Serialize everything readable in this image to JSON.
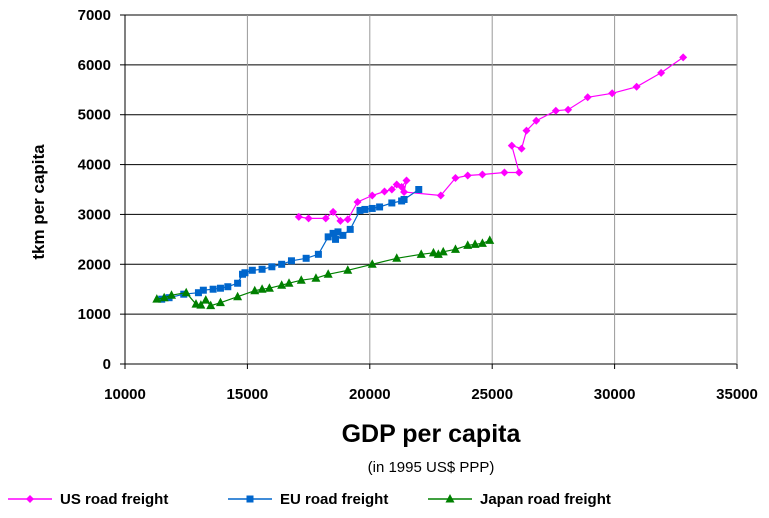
{
  "chart_data": {
    "type": "line",
    "title": "",
    "xlabel": "GDP per capita",
    "xlabel_sub": "(in 1995 US$ PPP)",
    "ylabel": "tkm per capita",
    "xlim": [
      10000,
      35000
    ],
    "ylim": [
      0,
      7000
    ],
    "x_ticks": [
      10000,
      15000,
      20000,
      25000,
      30000,
      35000
    ],
    "y_ticks": [
      0,
      1000,
      2000,
      3000,
      4000,
      5000,
      6000,
      7000
    ],
    "x_tick_labels": [
      "10000",
      "15000",
      "20000",
      "25000",
      "30000",
      "35000"
    ],
    "y_tick_labels": [
      "0",
      "1000",
      "2000",
      "3000",
      "4000",
      "5000",
      "6000",
      "7000"
    ],
    "grid": {
      "vertical": true,
      "horizontal": true
    },
    "legend_position": "bottom",
    "series": [
      {
        "name": "US road freight",
        "color": "#ff00ff",
        "marker": "diamond",
        "points": [
          [
            17100,
            2950
          ],
          [
            17500,
            2920
          ],
          [
            18200,
            2920
          ],
          [
            18500,
            3050
          ],
          [
            18800,
            2870
          ],
          [
            19100,
            2900
          ],
          [
            19500,
            3250
          ],
          [
            20100,
            3380
          ],
          [
            20600,
            3460
          ],
          [
            20900,
            3500
          ],
          [
            21100,
            3600
          ],
          [
            21300,
            3550
          ],
          [
            21500,
            3680
          ],
          [
            21400,
            3450
          ],
          [
            22900,
            3380
          ],
          [
            23500,
            3730
          ],
          [
            24000,
            3780
          ],
          [
            24600,
            3800
          ],
          [
            25500,
            3840
          ],
          [
            26100,
            3840
          ],
          [
            25800,
            4380
          ],
          [
            26200,
            4320
          ],
          [
            26400,
            4680
          ],
          [
            26800,
            4880
          ],
          [
            27600,
            5080
          ],
          [
            28100,
            5100
          ],
          [
            28900,
            5350
          ],
          [
            29900,
            5430
          ],
          [
            30900,
            5560
          ],
          [
            31900,
            5840
          ],
          [
            32800,
            6150
          ]
        ]
      },
      {
        "name": "EU road freight",
        "color": "#0066cc",
        "marker": "square",
        "points": [
          [
            11500,
            1300
          ],
          [
            11800,
            1330
          ],
          [
            12400,
            1400
          ],
          [
            13000,
            1430
          ],
          [
            13200,
            1480
          ],
          [
            13600,
            1500
          ],
          [
            13900,
            1520
          ],
          [
            14200,
            1550
          ],
          [
            14600,
            1620
          ],
          [
            14800,
            1800
          ],
          [
            14900,
            1830
          ],
          [
            15200,
            1880
          ],
          [
            15600,
            1900
          ],
          [
            16000,
            1950
          ],
          [
            16400,
            2000
          ],
          [
            16800,
            2070
          ],
          [
            17400,
            2120
          ],
          [
            17900,
            2200
          ],
          [
            18300,
            2550
          ],
          [
            18500,
            2620
          ],
          [
            18700,
            2650
          ],
          [
            18600,
            2500
          ],
          [
            18900,
            2580
          ],
          [
            19200,
            2700
          ],
          [
            19600,
            3080
          ],
          [
            19800,
            3100
          ],
          [
            20100,
            3120
          ],
          [
            20400,
            3150
          ],
          [
            20900,
            3230
          ],
          [
            21300,
            3270
          ],
          [
            21400,
            3300
          ],
          [
            22000,
            3500
          ]
        ]
      },
      {
        "name": "Japan road freight",
        "color": "#008000",
        "marker": "triangle",
        "points": [
          [
            11300,
            1300
          ],
          [
            11600,
            1330
          ],
          [
            11900,
            1380
          ],
          [
            12500,
            1430
          ],
          [
            12900,
            1200
          ],
          [
            13100,
            1180
          ],
          [
            13300,
            1280
          ],
          [
            13500,
            1170
          ],
          [
            13900,
            1230
          ],
          [
            14600,
            1350
          ],
          [
            15300,
            1470
          ],
          [
            15600,
            1500
          ],
          [
            15900,
            1520
          ],
          [
            16400,
            1580
          ],
          [
            16700,
            1620
          ],
          [
            17200,
            1680
          ],
          [
            17800,
            1720
          ],
          [
            18300,
            1800
          ],
          [
            19100,
            1880
          ],
          [
            20100,
            2000
          ],
          [
            21100,
            2120
          ],
          [
            22100,
            2200
          ],
          [
            22600,
            2230
          ],
          [
            22800,
            2200
          ],
          [
            23000,
            2250
          ],
          [
            23500,
            2300
          ],
          [
            24000,
            2380
          ],
          [
            24300,
            2400
          ],
          [
            24600,
            2420
          ],
          [
            24900,
            2480
          ]
        ]
      }
    ]
  }
}
